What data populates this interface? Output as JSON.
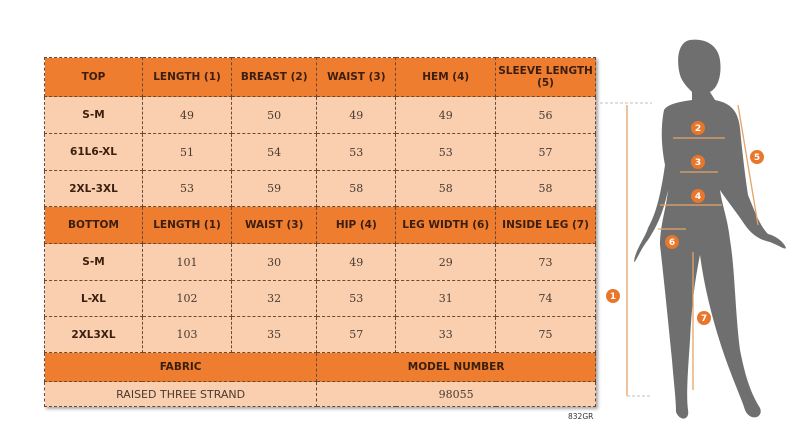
{
  "top_table": {
    "headers": [
      "TOP",
      "LENGTH (1)",
      "BREAST (2)",
      "WAIST (3)",
      "HEM (4)",
      "SLEEVE LENGTH (5)"
    ],
    "rows": [
      [
        "S-M",
        "49",
        "50",
        "49",
        "49",
        "56"
      ],
      [
        "61L6-XL",
        "51",
        "54",
        "53",
        "53",
        "57"
      ],
      [
        "2XL-3XL",
        "53",
        "59",
        "58",
        "58",
        "58"
      ]
    ]
  },
  "bottom_table": {
    "headers": [
      "BOTTOM",
      "LENGTH (1)",
      "WAIST (3)",
      "HIP (4)",
      "LEG WIDTH (6)",
      "INSIDE LEG (7)"
    ],
    "rows": [
      [
        "S-M",
        "101",
        "30",
        "49",
        "29",
        "73"
      ],
      [
        "L-XL",
        "102",
        "32",
        "53",
        "31",
        "74"
      ],
      [
        "2XL3XL",
        "103",
        "35",
        "57",
        "33",
        "75"
      ]
    ]
  },
  "info": {
    "fabric_label": "FABRIC",
    "fabric_value": "RAISED THREE STRAND",
    "model_label": "MODEL NUMBER",
    "model_value": "98055"
  },
  "code": "832GR",
  "figure": {
    "markers": [
      "1",
      "2",
      "3",
      "4",
      "5",
      "6",
      "7"
    ],
    "colors": {
      "header": "#ee7d2f",
      "cell": "#f9cfb0",
      "marker": "#e8762b",
      "silhouette": "#6f6f6f"
    }
  }
}
